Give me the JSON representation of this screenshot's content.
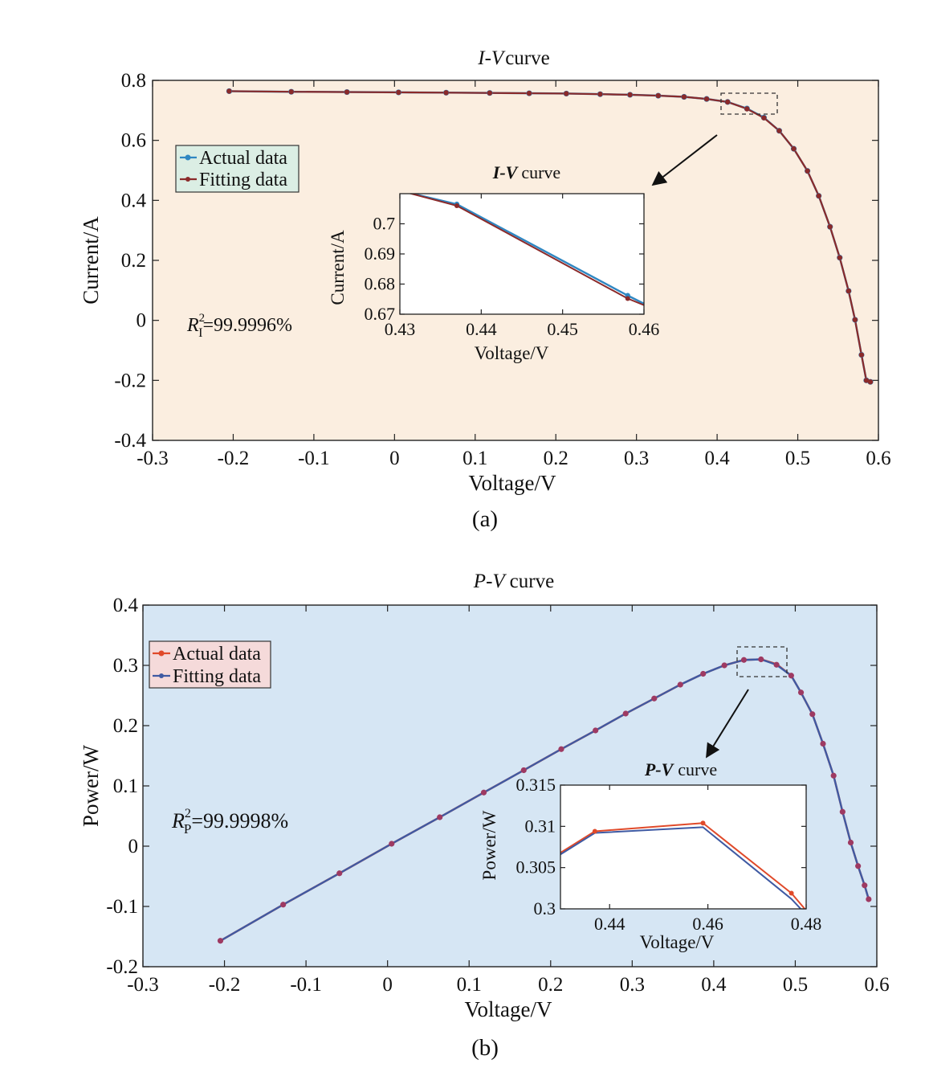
{
  "colors": {
    "panel_a_bg": "#fbeee0",
    "panel_b_bg": "#d6e6f4",
    "legend_a_bg": "#dbeee4",
    "legend_b_bg": "#f5dada",
    "blue_series": "#2f87c2",
    "dark_red_series": "#8b2a2a",
    "red_series": "#e04a2a",
    "navy_series": "#3f5aa3",
    "marker_b": "#9e3a62"
  },
  "chart_data": [
    {
      "type": "line",
      "panel": "(a)",
      "title": {
        "italic": "I-V",
        "rest": "curve"
      },
      "xlabel": "Voltage/V",
      "ylabel": "Current/A",
      "xlim": [
        -0.3,
        0.6
      ],
      "ylim": [
        -0.4,
        0.8
      ],
      "xticks": [
        "-0.3",
        "-0.2",
        "-0.1",
        "0",
        "0.1",
        "0.2",
        "0.3",
        "0.4",
        "0.5",
        "0.6"
      ],
      "yticks": [
        "-0.4",
        "-0.2",
        "0",
        "0.2",
        "0.4",
        "0.6",
        "0.8"
      ],
      "grid": false,
      "legend_position": "upper-left",
      "annotation": {
        "symbol": "R",
        "sub": "I",
        "sup": "2",
        "text": "=99.9996%"
      },
      "series": [
        {
          "name": "Actual data",
          "x": [
            -0.205,
            -0.128,
            -0.059,
            0.005,
            0.064,
            0.118,
            0.167,
            0.213,
            0.255,
            0.292,
            0.327,
            0.359,
            0.387,
            0.413,
            0.437,
            0.458,
            0.477,
            0.495,
            0.512,
            0.526,
            0.54,
            0.552,
            0.563,
            0.571,
            0.579,
            0.585,
            0.59
          ],
          "y": [
            0.764,
            0.762,
            0.761,
            0.76,
            0.759,
            0.758,
            0.757,
            0.756,
            0.754,
            0.752,
            0.749,
            0.745,
            0.738,
            0.728,
            0.706,
            0.676,
            0.632,
            0.572,
            0.498,
            0.415,
            0.312,
            0.209,
            0.098,
            0.002,
            -0.115,
            -0.2,
            -0.205
          ]
        },
        {
          "name": "Fitting data",
          "x": [
            -0.205,
            -0.128,
            -0.059,
            0.005,
            0.064,
            0.118,
            0.167,
            0.213,
            0.255,
            0.292,
            0.327,
            0.359,
            0.387,
            0.413,
            0.437,
            0.458,
            0.477,
            0.495,
            0.512,
            0.526,
            0.54,
            0.552,
            0.563,
            0.571,
            0.579,
            0.585,
            0.59
          ],
          "y": [
            0.764,
            0.762,
            0.761,
            0.76,
            0.759,
            0.758,
            0.757,
            0.756,
            0.754,
            0.752,
            0.749,
            0.745,
            0.738,
            0.728,
            0.705,
            0.675,
            0.632,
            0.572,
            0.498,
            0.415,
            0.312,
            0.209,
            0.098,
            0.002,
            -0.115,
            -0.2,
            -0.205
          ]
        }
      ],
      "inset": {
        "title": {
          "italic": "I-V",
          "rest": "curve"
        },
        "xlabel": "Voltage/V",
        "ylabel": "Current/A",
        "xlim": [
          0.43,
          0.46
        ],
        "ylim": [
          0.67,
          0.71
        ],
        "xticks": [
          "0.43",
          "0.44",
          "0.45",
          "0.46"
        ],
        "yticks": [
          "0.67",
          "0.68",
          "0.69",
          "0.7"
        ],
        "series": [
          {
            "name": "Actual data",
            "x": [
              0.43,
              0.437,
              0.458,
              0.46
            ],
            "y": [
              0.711,
              0.7065,
              0.6762,
              0.6735
            ]
          },
          {
            "name": "Fitting data",
            "x": [
              0.43,
              0.437,
              0.458,
              0.46
            ],
            "y": [
              0.711,
              0.706,
              0.6752,
              0.673
            ]
          }
        ]
      }
    },
    {
      "type": "line",
      "panel": "(b)",
      "title": {
        "italic": "P-V",
        "rest": "curve"
      },
      "xlabel": "Voltage/V",
      "ylabel": "Power/W",
      "xlim": [
        -0.3,
        0.6
      ],
      "ylim": [
        -0.2,
        0.4
      ],
      "xticks": [
        "-0.3",
        "-0.2",
        "-0.1",
        "0",
        "0.1",
        "0.2",
        "0.3",
        "0.4",
        "0.5",
        "0.6"
      ],
      "yticks": [
        "-0.2",
        "-0.1",
        "0",
        "0.1",
        "0.2",
        "0.3",
        "0.4"
      ],
      "grid": false,
      "legend_position": "upper-left",
      "annotation": {
        "symbol": "R",
        "sub": "P",
        "sup": "2",
        "text": "=99.9998%"
      },
      "series": [
        {
          "name": "Actual data",
          "x": [
            -0.205,
            -0.128,
            -0.059,
            0.005,
            0.064,
            0.118,
            0.167,
            0.213,
            0.255,
            0.292,
            0.327,
            0.359,
            0.387,
            0.413,
            0.437,
            0.458,
            0.477,
            0.495,
            0.507,
            0.521,
            0.534,
            0.547,
            0.558,
            0.568,
            0.577,
            0.585,
            0.59
          ],
          "y": [
            -0.157,
            -0.097,
            -0.045,
            0.004,
            0.048,
            0.089,
            0.126,
            0.161,
            0.192,
            0.22,
            0.245,
            0.268,
            0.286,
            0.3,
            0.309,
            0.31,
            0.302,
            0.283,
            0.255,
            0.219,
            0.17,
            0.117,
            0.057,
            0.006,
            -0.033,
            -0.065,
            -0.088
          ]
        },
        {
          "name": "Fitting data",
          "x": [
            -0.205,
            -0.128,
            -0.059,
            0.005,
            0.064,
            0.118,
            0.167,
            0.213,
            0.255,
            0.292,
            0.327,
            0.359,
            0.387,
            0.413,
            0.437,
            0.458,
            0.477,
            0.495,
            0.507,
            0.521,
            0.534,
            0.547,
            0.558,
            0.568,
            0.577,
            0.585,
            0.59
          ],
          "y": [
            -0.157,
            -0.097,
            -0.045,
            0.004,
            0.048,
            0.089,
            0.126,
            0.161,
            0.192,
            0.22,
            0.245,
            0.268,
            0.286,
            0.3,
            0.309,
            0.31,
            0.301,
            0.283,
            0.255,
            0.219,
            0.17,
            0.117,
            0.057,
            0.006,
            -0.033,
            -0.065,
            -0.088
          ]
        }
      ],
      "inset": {
        "title": {
          "italic": "P-V",
          "rest": "curve"
        },
        "xlabel": "Voltage/V",
        "ylabel": "Power/W",
        "xlim": [
          0.43,
          0.48
        ],
        "ylim": [
          0.3,
          0.315
        ],
        "xticks": [
          "0.44",
          "0.46",
          "0.48"
        ],
        "yticks": [
          "0.3",
          "0.305",
          "0.31",
          "0.315"
        ],
        "series": [
          {
            "name": "Actual data",
            "x": [
              0.43,
              0.437,
              0.459,
              0.477,
              0.48
            ],
            "y": [
              0.3068,
              0.3094,
              0.3104,
              0.3019,
              0.2998
            ]
          },
          {
            "name": "Fitting data",
            "x": [
              0.43,
              0.437,
              0.459,
              0.477,
              0.48
            ],
            "y": [
              0.3066,
              0.3092,
              0.3099,
              0.3012,
              0.2993
            ]
          }
        ]
      }
    }
  ]
}
